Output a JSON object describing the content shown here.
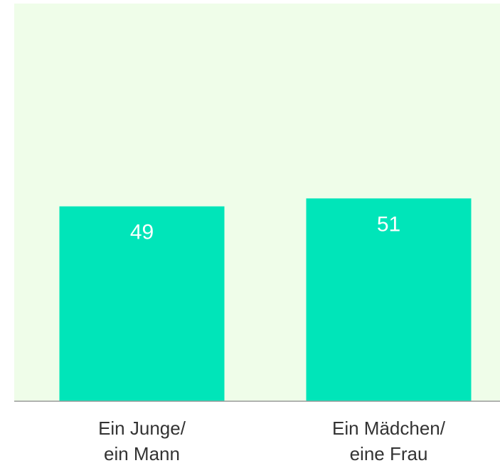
{
  "chart_data": {
    "type": "bar",
    "categories": [
      "Ein Junge/\nein Mann",
      "Ein Mädchen/\neine Frau"
    ],
    "values": [
      49,
      51
    ],
    "color": "#00e5b9",
    "ylim": [
      0,
      100
    ],
    "background": "#effde9"
  }
}
